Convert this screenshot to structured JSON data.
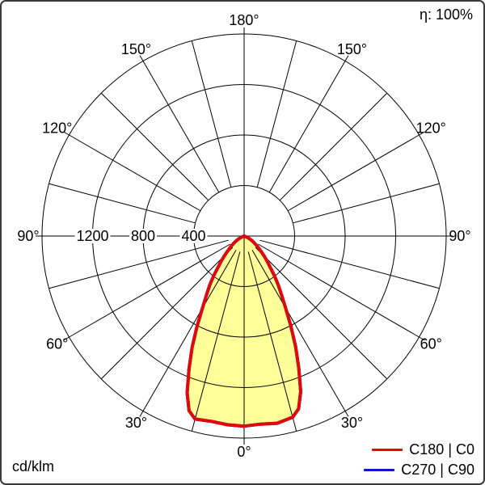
{
  "meta": {
    "efficiency_label": "η: 100%",
    "unit_label": "cd/klm"
  },
  "legend": [
    {
      "label": "C180 | C0",
      "color": "#dd0b0b"
    },
    {
      "label": "C270 | C90",
      "color": "#1414c8"
    }
  ],
  "chart_data": {
    "type": "polar",
    "subtype": "luminous-intensity-distribution",
    "unit": "cd/klm",
    "efficiency": "100%",
    "rings": [
      400,
      800,
      1200,
      1600
    ],
    "ring_tick_labels": [
      "400",
      "800",
      "1200"
    ],
    "grid": {
      "spoke_step_deg": 15,
      "labeled_step_deg": 30,
      "grid_color": "#000000",
      "fill_color": "#ffff99"
    },
    "angle_labels": [
      {
        "text": "180°",
        "gamma": 180,
        "dir": 0
      },
      {
        "text": "150°",
        "gamma": 150,
        "dir": -1
      },
      {
        "text": "150°",
        "gamma": 150,
        "dir": 1
      },
      {
        "text": "120°",
        "gamma": 120,
        "dir": -1
      },
      {
        "text": "120°",
        "gamma": 120,
        "dir": 1
      },
      {
        "text": "90°",
        "gamma": 90,
        "dir": -1
      },
      {
        "text": "90°",
        "gamma": 90,
        "dir": 1
      },
      {
        "text": "60°",
        "gamma": 60,
        "dir": -1
      },
      {
        "text": "60°",
        "gamma": 60,
        "dir": 1
      },
      {
        "text": "30°",
        "gamma": 30,
        "dir": -1
      },
      {
        "text": "30°",
        "gamma": 30,
        "dir": 1
      },
      {
        "text": "0°",
        "gamma": 0,
        "dir": 0
      }
    ],
    "series": [
      {
        "name": "C180 | C0",
        "color": "#dd0b0b",
        "filled": true,
        "points_right": [
          [
            0,
            1505
          ],
          [
            5,
            1495
          ],
          [
            10,
            1505
          ],
          [
            15,
            1485
          ],
          [
            17.5,
            1435
          ],
          [
            20,
            1310
          ],
          [
            22.5,
            1130
          ],
          [
            25,
            965
          ],
          [
            27.5,
            800
          ],
          [
            30,
            655
          ],
          [
            32.5,
            550
          ],
          [
            35,
            470
          ],
          [
            37.5,
            390
          ],
          [
            40,
            320
          ],
          [
            42.5,
            270
          ],
          [
            45,
            225
          ],
          [
            47.5,
            185
          ],
          [
            50,
            155
          ],
          [
            52.5,
            128
          ],
          [
            55,
            105
          ],
          [
            57.5,
            86
          ],
          [
            60,
            70
          ],
          [
            62.5,
            52
          ],
          [
            65,
            35
          ],
          [
            67.5,
            18
          ],
          [
            70,
            0
          ]
        ],
        "points_left": [
          [
            0,
            1505
          ],
          [
            5,
            1500
          ],
          [
            10,
            1490
          ],
          [
            15,
            1500
          ],
          [
            17.5,
            1450
          ],
          [
            20,
            1320
          ],
          [
            22.5,
            1140
          ],
          [
            25,
            975
          ],
          [
            27.5,
            810
          ],
          [
            30,
            660
          ],
          [
            32.5,
            555
          ],
          [
            35,
            475
          ],
          [
            37.5,
            395
          ],
          [
            40,
            320
          ],
          [
            42.5,
            265
          ],
          [
            45,
            220
          ],
          [
            47.5,
            180
          ],
          [
            50,
            150
          ],
          [
            52.5,
            125
          ],
          [
            55,
            100
          ],
          [
            57.5,
            82
          ],
          [
            60,
            65
          ],
          [
            62.5,
            48
          ],
          [
            65,
            30
          ],
          [
            67.5,
            15
          ],
          [
            70,
            0
          ]
        ]
      },
      {
        "name": "C270 | C90",
        "color": "#1414c8",
        "filled": false,
        "points_right": [
          [
            0,
            1505
          ],
          [
            5,
            1495
          ],
          [
            10,
            1505
          ],
          [
            15,
            1485
          ],
          [
            17.5,
            1435
          ],
          [
            20,
            1310
          ],
          [
            22.5,
            1130
          ],
          [
            25,
            965
          ],
          [
            27.5,
            800
          ],
          [
            30,
            655
          ],
          [
            32.5,
            550
          ],
          [
            35,
            470
          ],
          [
            37.5,
            390
          ],
          [
            40,
            320
          ],
          [
            42.5,
            270
          ],
          [
            45,
            225
          ],
          [
            47.5,
            185
          ],
          [
            50,
            155
          ],
          [
            52.5,
            128
          ],
          [
            55,
            105
          ],
          [
            57.5,
            86
          ],
          [
            60,
            70
          ],
          [
            62.5,
            52
          ],
          [
            65,
            35
          ],
          [
            67.5,
            18
          ],
          [
            70,
            0
          ]
        ],
        "points_left": [
          [
            0,
            1505
          ],
          [
            5,
            1500
          ],
          [
            10,
            1490
          ],
          [
            15,
            1500
          ],
          [
            17.5,
            1450
          ],
          [
            20,
            1320
          ],
          [
            22.5,
            1140
          ],
          [
            25,
            975
          ],
          [
            27.5,
            810
          ],
          [
            30,
            660
          ],
          [
            32.5,
            555
          ],
          [
            35,
            475
          ],
          [
            37.5,
            395
          ],
          [
            40,
            320
          ],
          [
            42.5,
            265
          ],
          [
            45,
            220
          ],
          [
            47.5,
            180
          ],
          [
            50,
            150
          ],
          [
            52.5,
            125
          ],
          [
            55,
            100
          ],
          [
            57.5,
            82
          ],
          [
            60,
            65
          ],
          [
            62.5,
            48
          ],
          [
            65,
            30
          ],
          [
            67.5,
            15
          ],
          [
            70,
            0
          ]
        ]
      }
    ]
  }
}
